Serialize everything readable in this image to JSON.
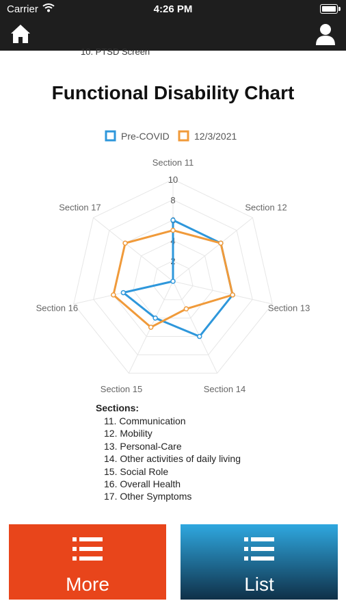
{
  "status": {
    "carrier": "Carrier",
    "time": "4:26 PM"
  },
  "nav": {
    "home_icon": "home-icon",
    "user_icon": "user-icon"
  },
  "scroll_peek": "10. PTSD Screen",
  "title": "Functional Disability Chart",
  "chart_data": {
    "type": "radar",
    "title": "",
    "axes": [
      "Section 11",
      "Section 12",
      "Section 13",
      "Section 14",
      "Section 15",
      "Section 16",
      "Section 17"
    ],
    "rlim": [
      0,
      10
    ],
    "ticks": [
      "2",
      "4",
      "6",
      "8",
      "10"
    ],
    "tick_values": [
      2,
      4,
      6,
      8,
      10
    ],
    "series": [
      {
        "name": "Pre-COVID",
        "color": "#2e97db",
        "values": [
          6,
          6,
          6,
          6,
          4,
          5,
          0
        ]
      },
      {
        "name": "12/3/2021",
        "color": "#f09a3a",
        "values": [
          5,
          6,
          6,
          3,
          5,
          6,
          6
        ]
      }
    ],
    "legend": "top",
    "grid": true
  },
  "sections": {
    "header": "Sections:",
    "items": [
      "11. Communication",
      "12. Mobility",
      "13. Personal-Care",
      "14. Other activities of daily living",
      "15. Social Role",
      "16. Overall Health",
      "17. Other Symptoms"
    ]
  },
  "buttons": {
    "more": {
      "label": "More",
      "color": "#e8451b",
      "icon": "list-icon"
    },
    "list": {
      "label": "List",
      "color": "#1f7fb8",
      "icon": "list-icon"
    }
  }
}
